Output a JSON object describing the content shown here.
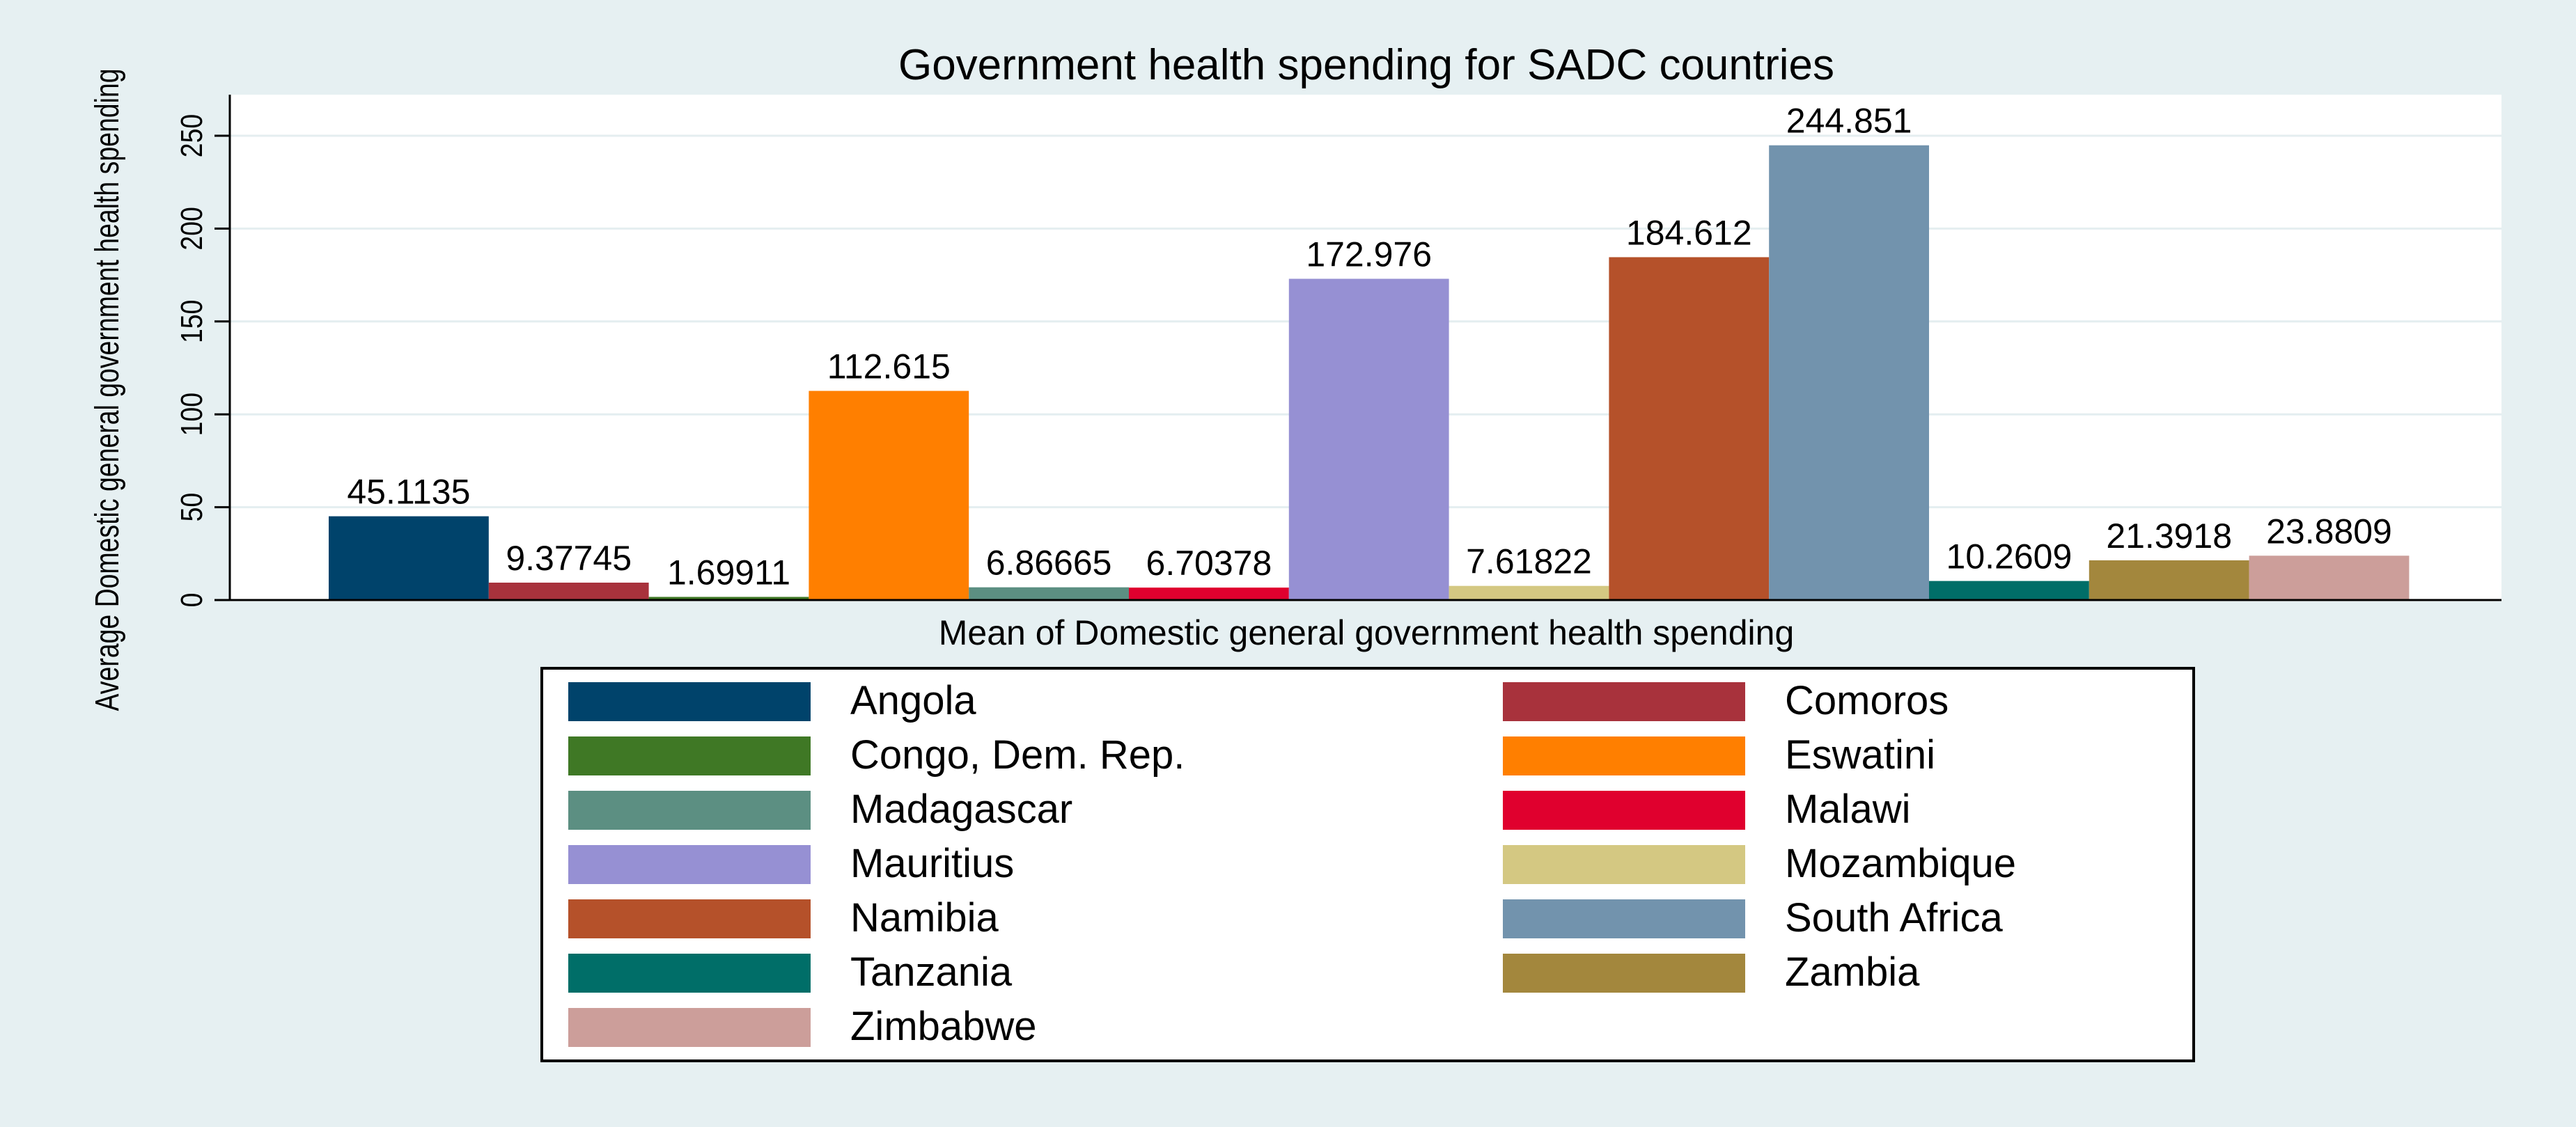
{
  "chart_data": {
    "type": "bar",
    "title": "Government health spending for SADC countries",
    "xlabel": "Mean of Domestic general government health spending",
    "ylabel": "Average Domestic general government health spending",
    "ylim": [
      0,
      270
    ],
    "yticks": [
      0,
      50,
      100,
      150,
      200,
      250
    ],
    "grid": true,
    "legend_position": "bottom",
    "series": [
      {
        "name": "Angola",
        "value": 45.1135,
        "label": "45.1135",
        "color": "#00436b"
      },
      {
        "name": "Comoros",
        "value": 9.37745,
        "label": "9.37745",
        "color": "#a8323c"
      },
      {
        "name": "Congo, Dem. Rep.",
        "value": 1.69911,
        "label": "1.69911",
        "color": "#3f7825"
      },
      {
        "name": "Eswatini",
        "value": 112.615,
        "label": "112.615",
        "color": "#ff7f00"
      },
      {
        "name": "Madagascar",
        "value": 6.86665,
        "label": "6.86665",
        "color": "#5c8f82"
      },
      {
        "name": "Malawi",
        "value": 6.70378,
        "label": "6.70378",
        "color": "#e0002e"
      },
      {
        "name": "Mauritius",
        "value": 172.976,
        "label": "172.976",
        "color": "#9690d3"
      },
      {
        "name": "Mozambique",
        "value": 7.61822,
        "label": "7.61822",
        "color": "#d4c882"
      },
      {
        "name": "Namibia",
        "value": 184.612,
        "label": "184.612",
        "color": "#b5512a"
      },
      {
        "name": "South Africa",
        "value": 244.851,
        "label": "244.851",
        "color": "#7293ad"
      },
      {
        "name": "Tanzania",
        "value": 10.2609,
        "label": "10.2609",
        "color": "#006e68"
      },
      {
        "name": "Zambia",
        "value": 21.3918,
        "label": "21.3918",
        "color": "#a3873d"
      },
      {
        "name": "Zimbabwe",
        "value": 23.8809,
        "label": "23.8809",
        "color": "#cc9e9a"
      }
    ]
  },
  "colors": {
    "outer_background": "#e6f0f2",
    "plot_background": "#ffffff",
    "grid": "#e4eef0",
    "legend_border": "#000000"
  }
}
